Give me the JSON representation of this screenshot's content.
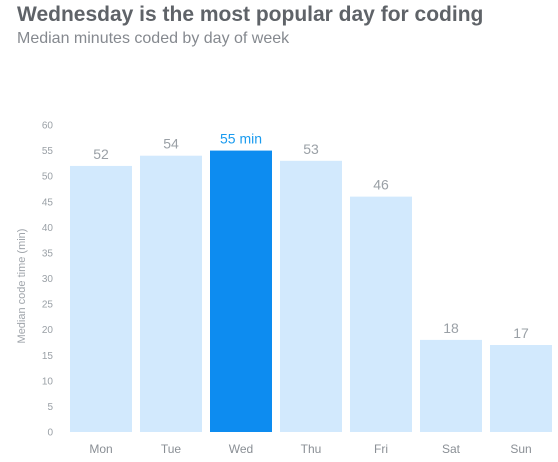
{
  "chart_data": {
    "type": "bar",
    "title": "Wednesday is the most popular day for coding",
    "subtitle": "Median minutes coded by day of week",
    "xlabel": "",
    "ylabel": "Median code time (min)",
    "ylim": [
      0,
      60
    ],
    "yticks": [
      0,
      5,
      10,
      15,
      20,
      25,
      30,
      35,
      40,
      45,
      50,
      55,
      60
    ],
    "grid": false,
    "categories": [
      "Mon",
      "Tue",
      "Wed",
      "Thu",
      "Fri",
      "Sat",
      "Sun"
    ],
    "values": [
      52,
      54,
      55,
      53,
      46,
      18,
      17
    ],
    "data_labels": [
      "52",
      "54",
      "55 min",
      "53",
      "46",
      "18",
      "17"
    ],
    "highlight_index": 2,
    "colors": {
      "bar": "#d2e9fd",
      "highlight": "#0d8cf0",
      "highlight_label": "#1a9bef"
    }
  }
}
